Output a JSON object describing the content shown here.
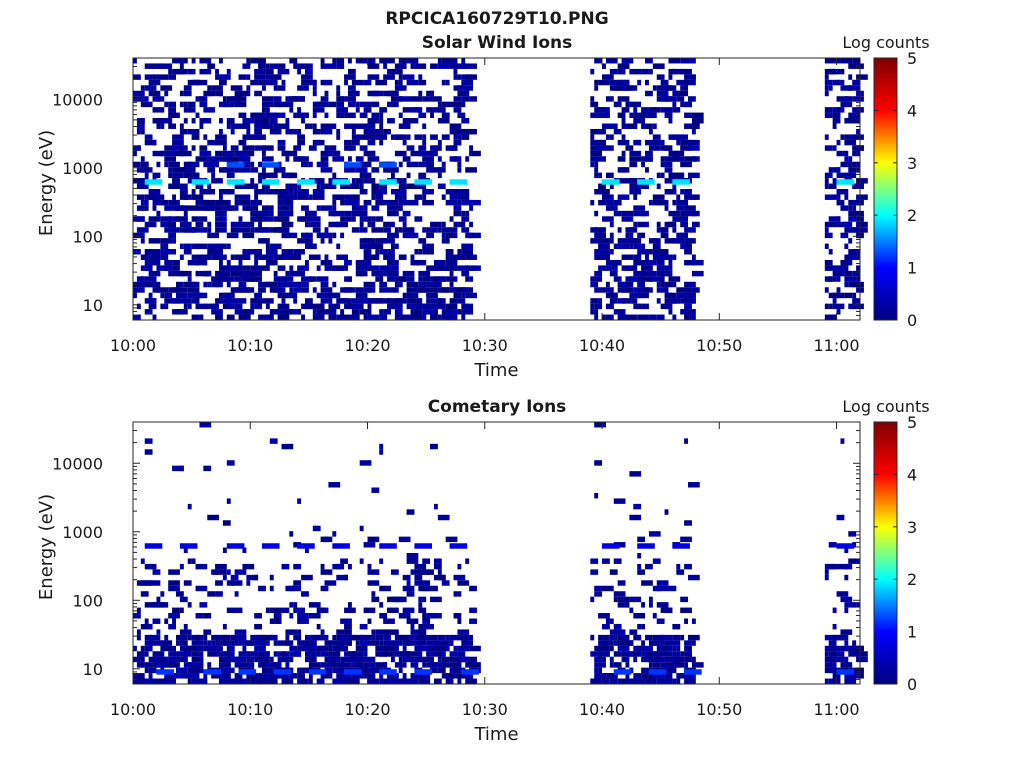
{
  "figure": {
    "title": "RPCICA160729T10.PNG"
  },
  "chart_data": [
    {
      "type": "heatmap",
      "title": "Solar Wind Ions",
      "xlabel": "Time",
      "ylabel": "Energy (eV)",
      "x_range": [
        "10:00",
        "11:02"
      ],
      "x_tick_labels": [
        "10:00",
        "10:10",
        "10:20",
        "10:30",
        "10:40",
        "10:50",
        "11:00"
      ],
      "y_scale": "log",
      "y_range": [
        6,
        40000
      ],
      "y_tick_labels": [
        "10",
        "100",
        "1000",
        "10000"
      ],
      "y_tick_values": [
        10,
        100,
        1000,
        10000
      ],
      "grid": false,
      "data_intervals": [
        [
          "10:00",
          "10:29"
        ],
        [
          "10:39",
          "10:48"
        ],
        [
          "10:59",
          "11:02"
        ]
      ],
      "colorbar": {
        "label": "Log counts",
        "range": [
          0,
          5
        ],
        "tick_labels": [
          "0",
          "1",
          "2",
          "3",
          "4",
          "5"
        ],
        "colormap": [
          "#00007f",
          "#0000ff",
          "#00ffff",
          "#ffff00",
          "#ff0000",
          "#7f0000"
        ]
      },
      "features": [
        {
          "energy_eV": 620,
          "level": 1.9,
          "times": [
            "10:01",
            "10:05",
            "10:08",
            "10:11",
            "10:14",
            "10:17",
            "10:21",
            "10:24",
            "10:27",
            "10:40",
            "10:43",
            "10:46",
            "11:00"
          ]
        },
        {
          "energy_eV": 1100,
          "level": 1.3,
          "times": [
            "10:08",
            "10:11",
            "10:18",
            "10:21"
          ]
        }
      ]
    },
    {
      "type": "heatmap",
      "title": "Cometary Ions",
      "xlabel": "Time",
      "ylabel": "Energy (eV)",
      "x_range": [
        "10:00",
        "11:02"
      ],
      "x_tick_labels": [
        "10:00",
        "10:10",
        "10:20",
        "10:30",
        "10:40",
        "10:50",
        "11:00"
      ],
      "y_scale": "log",
      "y_range": [
        6,
        40000
      ],
      "y_tick_labels": [
        "10",
        "100",
        "1000",
        "10000"
      ],
      "y_tick_values": [
        10,
        100,
        1000,
        10000
      ],
      "grid": false,
      "data_intervals": [
        [
          "10:00",
          "10:29"
        ],
        [
          "10:39",
          "10:48"
        ],
        [
          "10:59",
          "11:02"
        ]
      ],
      "colorbar": {
        "label": "Log counts",
        "range": [
          0,
          5
        ],
        "tick_labels": [
          "0",
          "1",
          "2",
          "3",
          "4",
          "5"
        ],
        "colormap": [
          "#00007f",
          "#0000ff",
          "#00ffff",
          "#ffff00",
          "#ff0000",
          "#7f0000"
        ]
      },
      "features": [
        {
          "energy_eV": 620,
          "level": 0.8,
          "times": [
            "10:01",
            "10:04",
            "10:08",
            "10:11",
            "10:14",
            "10:17",
            "10:21",
            "10:24",
            "10:27",
            "10:40",
            "10:43",
            "10:46",
            "11:00"
          ]
        },
        {
          "energy_eV": 9,
          "level": 1.2,
          "times": [
            "10:02",
            "10:06",
            "10:09",
            "10:12",
            "10:15",
            "10:18",
            "10:21",
            "10:24",
            "10:28",
            "10:41",
            "10:44",
            "10:47",
            "11:00"
          ]
        }
      ]
    }
  ]
}
